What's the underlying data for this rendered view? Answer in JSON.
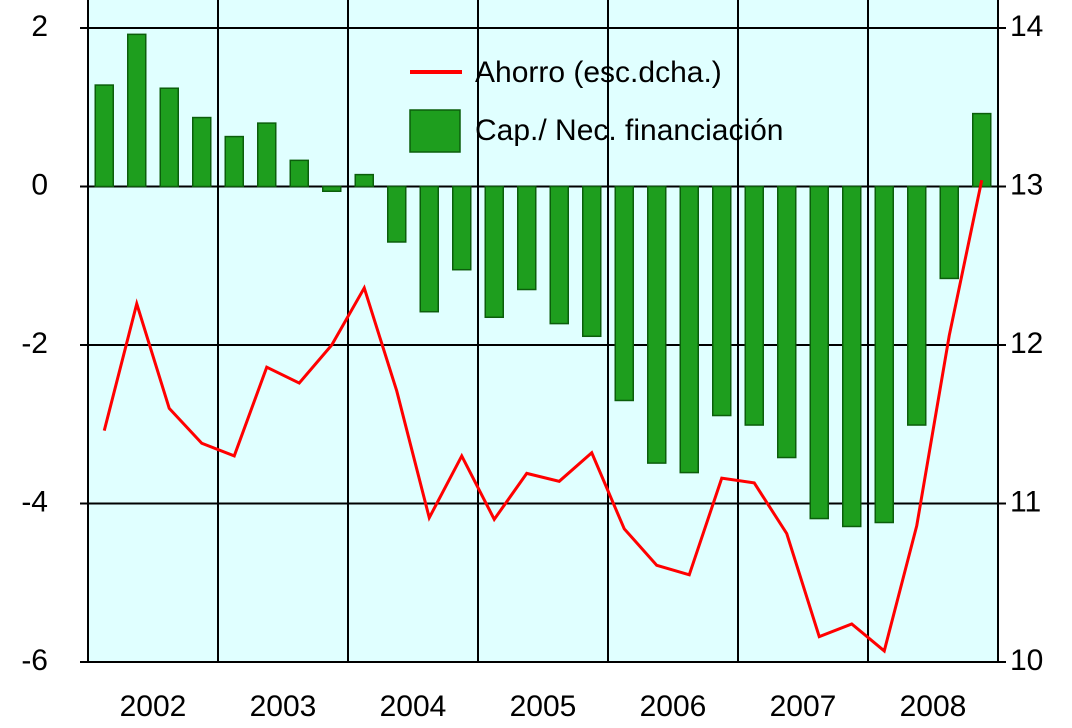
{
  "chart_data": {
    "type": "bar_line",
    "categories": [
      null,
      null,
      null,
      null,
      null,
      null,
      null,
      null,
      null,
      null,
      null,
      null,
      null,
      null,
      null,
      null,
      null,
      null,
      null,
      null,
      null,
      null,
      null,
      null,
      null,
      null,
      null,
      null
    ],
    "year_labels": [
      "2002",
      "2003",
      "2004",
      "2005",
      "2006",
      "2007",
      "2008"
    ],
    "series": [
      {
        "name": "Cap./ Nec. financiación",
        "type": "bar",
        "color": "#1e9e1e",
        "axis": "y",
        "values": [
          1.28,
          1.92,
          1.24,
          0.87,
          0.63,
          0.8,
          0.33,
          -0.06,
          0.15,
          -0.7,
          -1.58,
          -1.05,
          -1.65,
          -1.3,
          -1.73,
          -1.89,
          -2.7,
          -3.49,
          -3.61,
          -2.89,
          -3.01,
          -3.42,
          -4.19,
          -4.29,
          -4.24,
          -3.01,
          -1.16,
          0.92
        ]
      },
      {
        "name": "Ahorro (esc.dcha.)",
        "type": "line",
        "color": "#ff0000",
        "axis": "y2",
        "values": [
          11.46,
          12.26,
          11.6,
          11.38,
          11.3,
          11.86,
          11.76,
          12.0,
          12.36,
          11.71,
          10.91,
          11.3,
          10.9,
          11.19,
          11.14,
          11.32,
          10.84,
          10.61,
          10.55,
          11.16,
          11.13,
          10.81,
          10.16,
          10.24,
          10.07,
          10.86,
          12.06,
          13.04
        ]
      }
    ],
    "ylim": [
      -6,
      2
    ],
    "yticks": [
      -6,
      -4,
      -2,
      0,
      2
    ],
    "y2lim": [
      10,
      14
    ],
    "y2ticks": [
      10,
      11,
      12,
      13,
      14
    ],
    "grid": true
  }
}
